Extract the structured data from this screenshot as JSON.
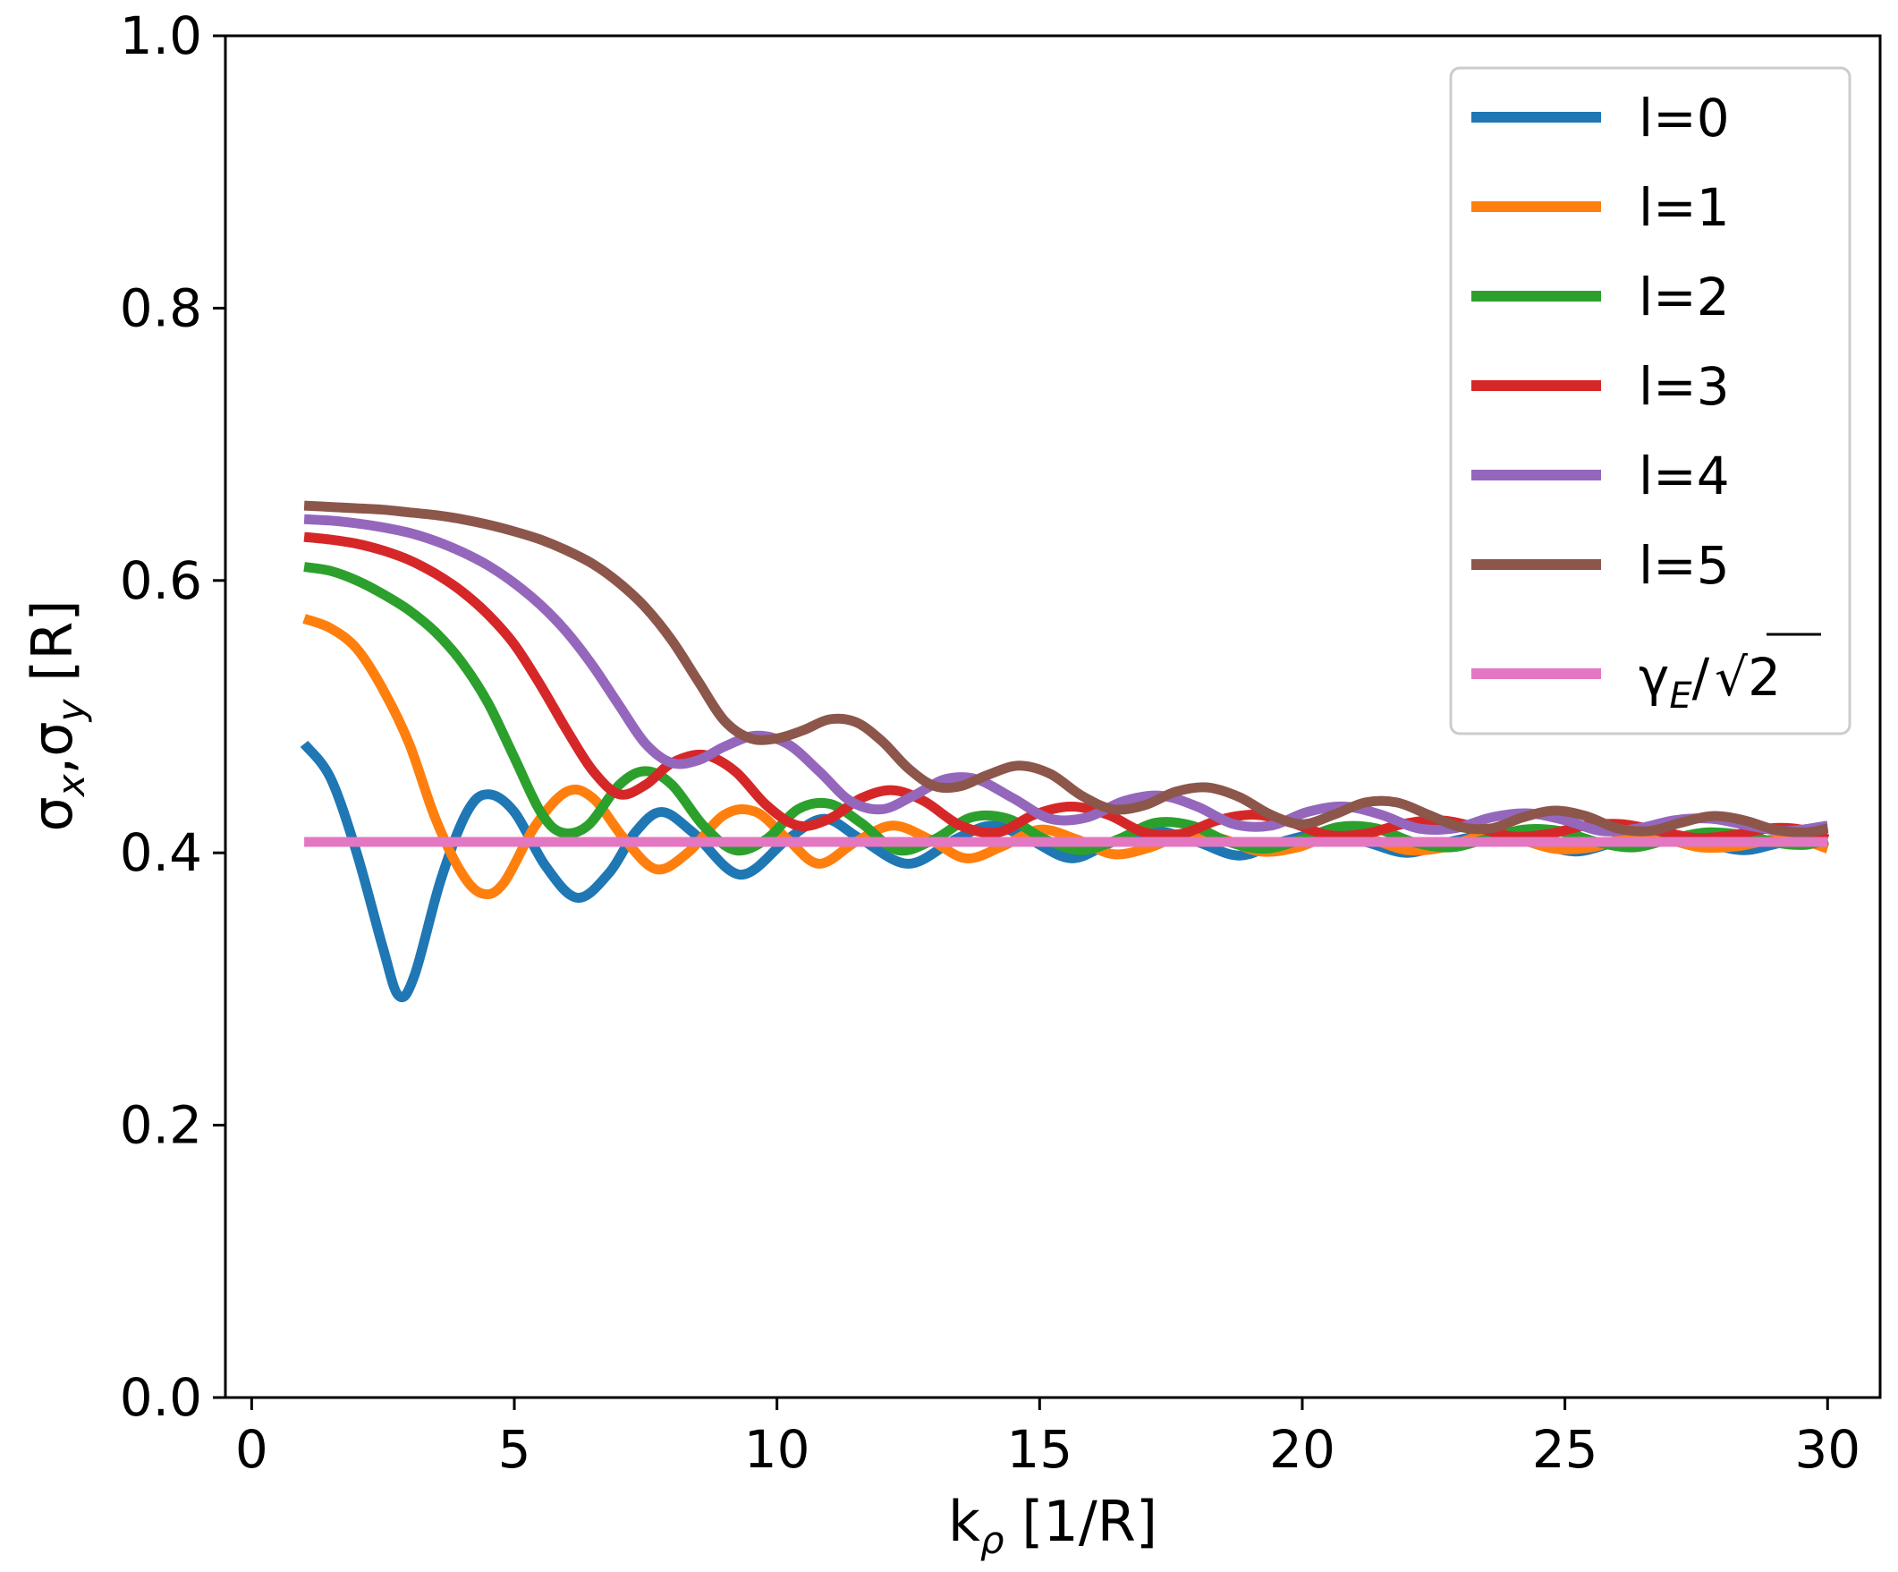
{
  "chart_data": {
    "type": "line",
    "title": "",
    "xlabel": {
      "base": "k",
      "sub": "ρ",
      "unit": " [1/R]"
    },
    "ylabel": {
      "sigma": "σ",
      "sub_x": "x",
      "sep": ",",
      "sub_y": "y",
      "unit": " [R]"
    },
    "xlim": [
      -0.5,
      31
    ],
    "ylim": [
      0.0,
      1.0
    ],
    "xticks": [
      "0",
      "5",
      "10",
      "15",
      "20",
      "25",
      "30"
    ],
    "xtick_values": [
      0,
      5,
      10,
      15,
      20,
      25,
      30
    ],
    "yticks": [
      "0.0",
      "0.2",
      "0.4",
      "0.6",
      "0.8",
      "1.0"
    ],
    "ytick_values": [
      0.0,
      0.2,
      0.4,
      0.6,
      0.8,
      1.0
    ],
    "grid": false,
    "legend_position": "top-right",
    "series": [
      {
        "name": "l=0",
        "color": "#1f77b4",
        "x_start": 1,
        "x_end": 30,
        "points": [
          [
            1,
            0.48
          ],
          [
            1.5,
            0.455
          ],
          [
            2,
            0.4
          ],
          [
            2.5,
            0.33
          ],
          [
            2.8,
            0.295
          ],
          [
            3.1,
            0.31
          ],
          [
            3.6,
            0.38
          ],
          [
            4.1,
            0.43
          ],
          [
            4.5,
            0.443
          ],
          [
            5,
            0.43
          ],
          [
            5.6,
            0.39
          ],
          [
            6.2,
            0.367
          ],
          [
            6.8,
            0.385
          ],
          [
            7.3,
            0.415
          ],
          [
            7.8,
            0.43
          ],
          [
            8.4,
            0.415
          ],
          [
            9.3,
            0.384
          ],
          [
            10.2,
            0.41
          ],
          [
            10.9,
            0.425
          ],
          [
            11.6,
            0.41
          ],
          [
            12.5,
            0.392
          ],
          [
            13.4,
            0.41
          ],
          [
            14.1,
            0.42
          ],
          [
            14.8,
            0.41
          ],
          [
            15.6,
            0.396
          ],
          [
            16.4,
            0.408
          ],
          [
            17.2,
            0.416
          ],
          [
            18,
            0.408
          ],
          [
            18.8,
            0.398
          ],
          [
            19.6,
            0.408
          ],
          [
            20.4,
            0.414
          ],
          [
            21.2,
            0.408
          ],
          [
            22,
            0.4
          ],
          [
            22.8,
            0.408
          ],
          [
            23.6,
            0.413
          ],
          [
            24.4,
            0.408
          ],
          [
            25.2,
            0.401
          ],
          [
            26,
            0.408
          ],
          [
            26.8,
            0.412
          ],
          [
            27.6,
            0.408
          ],
          [
            28.4,
            0.402
          ],
          [
            29.2,
            0.408
          ],
          [
            30,
            0.41
          ]
        ]
      },
      {
        "name": "l=1",
        "color": "#ff7f0e",
        "x_start": 1,
        "x_end": 30,
        "points": [
          [
            1,
            0.572
          ],
          [
            1.5,
            0.565
          ],
          [
            2,
            0.55
          ],
          [
            2.5,
            0.52
          ],
          [
            3,
            0.48
          ],
          [
            3.5,
            0.425
          ],
          [
            4,
            0.385
          ],
          [
            4.4,
            0.37
          ],
          [
            4.8,
            0.378
          ],
          [
            5.4,
            0.42
          ],
          [
            6,
            0.445
          ],
          [
            6.5,
            0.44
          ],
          [
            7.1,
            0.41
          ],
          [
            7.7,
            0.388
          ],
          [
            8.3,
            0.4
          ],
          [
            9,
            0.428
          ],
          [
            9.6,
            0.43
          ],
          [
            10.2,
            0.41
          ],
          [
            10.8,
            0.392
          ],
          [
            11.5,
            0.408
          ],
          [
            12.2,
            0.42
          ],
          [
            12.9,
            0.41
          ],
          [
            13.6,
            0.396
          ],
          [
            14.3,
            0.405
          ],
          [
            15,
            0.417
          ],
          [
            15.7,
            0.41
          ],
          [
            16.4,
            0.399
          ],
          [
            17.1,
            0.404
          ],
          [
            17.8,
            0.414
          ],
          [
            18.5,
            0.41
          ],
          [
            19.2,
            0.401
          ],
          [
            19.9,
            0.404
          ],
          [
            20.6,
            0.413
          ],
          [
            21.3,
            0.41
          ],
          [
            22,
            0.402
          ],
          [
            22.7,
            0.404
          ],
          [
            23.4,
            0.412
          ],
          [
            24.1,
            0.41
          ],
          [
            24.8,
            0.403
          ],
          [
            25.5,
            0.404
          ],
          [
            26.2,
            0.411
          ],
          [
            26.9,
            0.41
          ],
          [
            27.6,
            0.404
          ],
          [
            28.3,
            0.405
          ],
          [
            29,
            0.41
          ],
          [
            29.6,
            0.408
          ],
          [
            30,
            0.403
          ]
        ]
      },
      {
        "name": "l=2",
        "color": "#2ca02c",
        "x_start": 1,
        "x_end": 30,
        "points": [
          [
            1,
            0.61
          ],
          [
            1.5,
            0.607
          ],
          [
            2,
            0.6
          ],
          [
            2.5,
            0.59
          ],
          [
            3,
            0.578
          ],
          [
            3.5,
            0.562
          ],
          [
            4,
            0.54
          ],
          [
            4.5,
            0.51
          ],
          [
            5,
            0.47
          ],
          [
            5.5,
            0.43
          ],
          [
            5.9,
            0.415
          ],
          [
            6.4,
            0.42
          ],
          [
            7,
            0.45
          ],
          [
            7.5,
            0.46
          ],
          [
            8,
            0.45
          ],
          [
            8.6,
            0.42
          ],
          [
            9.2,
            0.402
          ],
          [
            9.8,
            0.41
          ],
          [
            10.4,
            0.432
          ],
          [
            11,
            0.436
          ],
          [
            11.6,
            0.422
          ],
          [
            12.3,
            0.402
          ],
          [
            13,
            0.41
          ],
          [
            13.7,
            0.426
          ],
          [
            14.4,
            0.425
          ],
          [
            15.1,
            0.41
          ],
          [
            15.8,
            0.402
          ],
          [
            16.5,
            0.41
          ],
          [
            17.2,
            0.422
          ],
          [
            17.9,
            0.42
          ],
          [
            18.6,
            0.408
          ],
          [
            19.3,
            0.403
          ],
          [
            20,
            0.41
          ],
          [
            20.7,
            0.419
          ],
          [
            21.4,
            0.418
          ],
          [
            22.1,
            0.408
          ],
          [
            22.8,
            0.404
          ],
          [
            23.5,
            0.41
          ],
          [
            24.2,
            0.417
          ],
          [
            24.9,
            0.416
          ],
          [
            25.6,
            0.408
          ],
          [
            26.3,
            0.404
          ],
          [
            27,
            0.41
          ],
          [
            27.7,
            0.415
          ],
          [
            28.4,
            0.413
          ],
          [
            29.1,
            0.407
          ],
          [
            29.6,
            0.406
          ],
          [
            30,
            0.41
          ]
        ]
      },
      {
        "name": "l=3",
        "color": "#d62728",
        "x_start": 1,
        "x_end": 30,
        "points": [
          [
            1,
            0.632
          ],
          [
            1.5,
            0.63
          ],
          [
            2,
            0.627
          ],
          [
            2.5,
            0.622
          ],
          [
            3,
            0.615
          ],
          [
            3.5,
            0.605
          ],
          [
            4,
            0.592
          ],
          [
            4.5,
            0.575
          ],
          [
            5,
            0.553
          ],
          [
            5.5,
            0.523
          ],
          [
            6,
            0.49
          ],
          [
            6.5,
            0.46
          ],
          [
            7,
            0.443
          ],
          [
            7.5,
            0.45
          ],
          [
            8,
            0.466
          ],
          [
            8.6,
            0.472
          ],
          [
            9.2,
            0.46
          ],
          [
            9.8,
            0.435
          ],
          [
            10.4,
            0.42
          ],
          [
            11,
            0.425
          ],
          [
            11.6,
            0.44
          ],
          [
            12.2,
            0.446
          ],
          [
            12.8,
            0.438
          ],
          [
            13.5,
            0.42
          ],
          [
            14.2,
            0.415
          ],
          [
            14.9,
            0.428
          ],
          [
            15.6,
            0.434
          ],
          [
            16.3,
            0.428
          ],
          [
            17,
            0.415
          ],
          [
            17.7,
            0.414
          ],
          [
            18.4,
            0.424
          ],
          [
            19.1,
            0.428
          ],
          [
            19.8,
            0.422
          ],
          [
            20.5,
            0.413
          ],
          [
            21.2,
            0.414
          ],
          [
            21.9,
            0.421
          ],
          [
            22.6,
            0.424
          ],
          [
            23.3,
            0.419
          ],
          [
            24,
            0.412
          ],
          [
            24.7,
            0.414
          ],
          [
            25.4,
            0.42
          ],
          [
            26.1,
            0.421
          ],
          [
            26.8,
            0.416
          ],
          [
            27.5,
            0.411
          ],
          [
            28.2,
            0.413
          ],
          [
            28.9,
            0.418
          ],
          [
            29.5,
            0.417
          ],
          [
            30,
            0.41
          ]
        ]
      },
      {
        "name": "l=4",
        "color": "#9467bd",
        "x_start": 1,
        "x_end": 30,
        "points": [
          [
            1,
            0.645
          ],
          [
            1.5,
            0.644
          ],
          [
            2,
            0.642
          ],
          [
            2.5,
            0.639
          ],
          [
            3,
            0.635
          ],
          [
            3.5,
            0.629
          ],
          [
            4,
            0.621
          ],
          [
            4.5,
            0.611
          ],
          [
            5,
            0.598
          ],
          [
            5.5,
            0.582
          ],
          [
            6,
            0.562
          ],
          [
            6.5,
            0.537
          ],
          [
            7,
            0.508
          ],
          [
            7.5,
            0.48
          ],
          [
            8,
            0.466
          ],
          [
            8.5,
            0.468
          ],
          [
            9,
            0.478
          ],
          [
            9.6,
            0.486
          ],
          [
            10.2,
            0.48
          ],
          [
            10.8,
            0.46
          ],
          [
            11.4,
            0.438
          ],
          [
            12,
            0.432
          ],
          [
            12.6,
            0.442
          ],
          [
            13.2,
            0.454
          ],
          [
            13.8,
            0.454
          ],
          [
            14.5,
            0.44
          ],
          [
            15.2,
            0.425
          ],
          [
            15.9,
            0.426
          ],
          [
            16.6,
            0.438
          ],
          [
            17.3,
            0.442
          ],
          [
            18,
            0.434
          ],
          [
            18.7,
            0.421
          ],
          [
            19.4,
            0.42
          ],
          [
            20.1,
            0.43
          ],
          [
            20.8,
            0.434
          ],
          [
            21.5,
            0.428
          ],
          [
            22.2,
            0.418
          ],
          [
            22.9,
            0.418
          ],
          [
            23.6,
            0.426
          ],
          [
            24.3,
            0.429
          ],
          [
            25,
            0.424
          ],
          [
            25.7,
            0.416
          ],
          [
            26.4,
            0.418
          ],
          [
            27.1,
            0.424
          ],
          [
            27.8,
            0.425
          ],
          [
            28.5,
            0.42
          ],
          [
            29.2,
            0.416
          ],
          [
            30,
            0.42
          ]
        ]
      },
      {
        "name": "l=5",
        "color": "#8c564b",
        "x_start": 1,
        "x_end": 30,
        "points": [
          [
            1,
            0.655
          ],
          [
            1.5,
            0.654
          ],
          [
            2,
            0.653
          ],
          [
            2.5,
            0.652
          ],
          [
            3,
            0.65
          ],
          [
            3.5,
            0.648
          ],
          [
            4,
            0.645
          ],
          [
            4.5,
            0.641
          ],
          [
            5,
            0.636
          ],
          [
            5.5,
            0.63
          ],
          [
            6,
            0.622
          ],
          [
            6.5,
            0.612
          ],
          [
            7,
            0.598
          ],
          [
            7.5,
            0.58
          ],
          [
            8,
            0.556
          ],
          [
            8.5,
            0.526
          ],
          [
            9,
            0.497
          ],
          [
            9.5,
            0.484
          ],
          [
            10,
            0.484
          ],
          [
            10.5,
            0.49
          ],
          [
            11,
            0.498
          ],
          [
            11.5,
            0.496
          ],
          [
            12,
            0.482
          ],
          [
            12.5,
            0.462
          ],
          [
            13,
            0.449
          ],
          [
            13.5,
            0.449
          ],
          [
            14,
            0.457
          ],
          [
            14.6,
            0.464
          ],
          [
            15.2,
            0.458
          ],
          [
            15.8,
            0.442
          ],
          [
            16.4,
            0.432
          ],
          [
            17,
            0.435
          ],
          [
            17.6,
            0.445
          ],
          [
            18.2,
            0.448
          ],
          [
            18.8,
            0.441
          ],
          [
            19.4,
            0.428
          ],
          [
            20,
            0.421
          ],
          [
            20.6,
            0.428
          ],
          [
            21.2,
            0.437
          ],
          [
            21.8,
            0.437
          ],
          [
            22.4,
            0.428
          ],
          [
            23,
            0.419
          ],
          [
            23.6,
            0.418
          ],
          [
            24.2,
            0.426
          ],
          [
            24.8,
            0.431
          ],
          [
            25.4,
            0.427
          ],
          [
            26,
            0.418
          ],
          [
            26.6,
            0.416
          ],
          [
            27.2,
            0.422
          ],
          [
            27.8,
            0.427
          ],
          [
            28.4,
            0.424
          ],
          [
            29,
            0.417
          ],
          [
            29.6,
            0.415
          ],
          [
            30,
            0.418
          ]
        ]
      },
      {
        "name": "γE/√2",
        "color": "#e377c2",
        "x_start": 1,
        "x_end": 30,
        "points": [
          [
            1,
            0.408
          ],
          [
            30,
            0.408
          ]
        ]
      }
    ],
    "legend": {
      "entries": [
        "l=0",
        "l=1",
        "l=2",
        "l=3",
        "l=4",
        "l=5"
      ],
      "gamma_base": "γ",
      "gamma_sub": "E",
      "gamma_div": "/",
      "gamma_root": "2"
    }
  }
}
